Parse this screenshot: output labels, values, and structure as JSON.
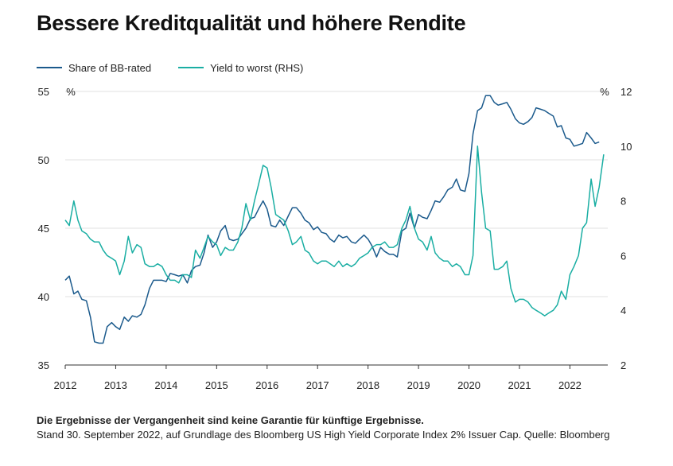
{
  "title": "Bessere Kreditqualität und höhere Rendite",
  "footer": {
    "disclaimer": "Die Ergebnisse der Vergangenheit sind keine Garantie für künftige Ergebnisse.",
    "source": "Stand 30. September 2022, auf Grundlage des Bloomberg US High Yield Corporate Index 2% Issuer Cap. Quelle: Bloomberg"
  },
  "colors": {
    "bb": "#1b5a8c",
    "ytw": "#1aaea3",
    "grid": "#e2e2e2",
    "axis": "#333333"
  },
  "chart_data": {
    "type": "line",
    "title": "Bessere Kreditqualität und höhere Rendite",
    "left_axis_unit": "%",
    "right_axis_unit": "%",
    "ylim_left": [
      35,
      55
    ],
    "ylim_right": [
      2,
      12
    ],
    "xlim": [
      2012.0,
      2022.75
    ],
    "yticks_left": [
      35,
      40,
      45,
      50,
      55
    ],
    "yticks_right": [
      2,
      4,
      6,
      8,
      10,
      12
    ],
    "xticks": [
      2012,
      2013,
      2014,
      2015,
      2016,
      2017,
      2018,
      2019,
      2020,
      2021,
      2022
    ],
    "series": [
      {
        "name": "Share of BB-rated",
        "axis": "left",
        "color": "#1b5a8c",
        "points": [
          [
            2012.0,
            41.2
          ],
          [
            2012.08,
            41.5
          ],
          [
            2012.17,
            40.2
          ],
          [
            2012.25,
            40.4
          ],
          [
            2012.33,
            39.8
          ],
          [
            2012.42,
            39.7
          ],
          [
            2012.5,
            38.5
          ],
          [
            2012.58,
            36.7
          ],
          [
            2012.67,
            36.6
          ],
          [
            2012.75,
            36.6
          ],
          [
            2012.83,
            37.8
          ],
          [
            2012.92,
            38.1
          ],
          [
            2013.0,
            37.8
          ],
          [
            2013.08,
            37.6
          ],
          [
            2013.17,
            38.5
          ],
          [
            2013.25,
            38.2
          ],
          [
            2013.33,
            38.6
          ],
          [
            2013.42,
            38.5
          ],
          [
            2013.5,
            38.7
          ],
          [
            2013.58,
            39.4
          ],
          [
            2013.67,
            40.6
          ],
          [
            2013.75,
            41.2
          ],
          [
            2013.83,
            41.2
          ],
          [
            2013.92,
            41.2
          ],
          [
            2014.0,
            41.1
          ],
          [
            2014.08,
            41.7
          ],
          [
            2014.17,
            41.6
          ],
          [
            2014.25,
            41.5
          ],
          [
            2014.33,
            41.6
          ],
          [
            2014.42,
            41.0
          ],
          [
            2014.5,
            41.9
          ],
          [
            2014.58,
            42.2
          ],
          [
            2014.67,
            42.3
          ],
          [
            2014.75,
            43.2
          ],
          [
            2014.83,
            44.5
          ],
          [
            2014.92,
            43.6
          ],
          [
            2015.0,
            44.0
          ],
          [
            2015.08,
            44.8
          ],
          [
            2015.17,
            45.2
          ],
          [
            2015.25,
            44.2
          ],
          [
            2015.33,
            44.1
          ],
          [
            2015.42,
            44.2
          ],
          [
            2015.5,
            44.6
          ],
          [
            2015.58,
            45.0
          ],
          [
            2015.67,
            45.7
          ],
          [
            2015.75,
            45.8
          ],
          [
            2015.83,
            46.4
          ],
          [
            2015.92,
            47.0
          ],
          [
            2016.0,
            46.4
          ],
          [
            2016.08,
            45.2
          ],
          [
            2016.17,
            45.1
          ],
          [
            2016.25,
            45.6
          ],
          [
            2016.33,
            45.2
          ],
          [
            2016.42,
            45.9
          ],
          [
            2016.5,
            46.5
          ],
          [
            2016.58,
            46.5
          ],
          [
            2016.67,
            46.1
          ],
          [
            2016.75,
            45.6
          ],
          [
            2016.83,
            45.4
          ],
          [
            2016.92,
            44.9
          ],
          [
            2017.0,
            45.1
          ],
          [
            2017.08,
            44.7
          ],
          [
            2017.17,
            44.6
          ],
          [
            2017.25,
            44.2
          ],
          [
            2017.33,
            44.0
          ],
          [
            2017.42,
            44.5
          ],
          [
            2017.5,
            44.3
          ],
          [
            2017.58,
            44.4
          ],
          [
            2017.67,
            44.0
          ],
          [
            2017.75,
            43.9
          ],
          [
            2017.83,
            44.2
          ],
          [
            2017.92,
            44.5
          ],
          [
            2018.0,
            44.2
          ],
          [
            2018.08,
            43.7
          ],
          [
            2018.17,
            42.9
          ],
          [
            2018.25,
            43.6
          ],
          [
            2018.33,
            43.3
          ],
          [
            2018.42,
            43.1
          ],
          [
            2018.5,
            43.1
          ],
          [
            2018.58,
            42.9
          ],
          [
            2018.67,
            44.8
          ],
          [
            2018.75,
            45.0
          ],
          [
            2018.83,
            46.1
          ],
          [
            2018.92,
            45.0
          ],
          [
            2019.0,
            46.0
          ],
          [
            2019.08,
            45.8
          ],
          [
            2019.17,
            45.7
          ],
          [
            2019.25,
            46.3
          ],
          [
            2019.33,
            47.0
          ],
          [
            2019.42,
            46.9
          ],
          [
            2019.5,
            47.3
          ],
          [
            2019.58,
            47.8
          ],
          [
            2019.67,
            48.0
          ],
          [
            2019.75,
            48.6
          ],
          [
            2019.83,
            47.8
          ],
          [
            2019.92,
            47.7
          ],
          [
            2020.0,
            49.0
          ],
          [
            2020.08,
            51.9
          ],
          [
            2020.17,
            53.6
          ],
          [
            2020.25,
            53.8
          ],
          [
            2020.33,
            54.7
          ],
          [
            2020.42,
            54.7
          ],
          [
            2020.5,
            54.2
          ],
          [
            2020.58,
            54.0
          ],
          [
            2020.67,
            54.1
          ],
          [
            2020.75,
            54.2
          ],
          [
            2020.83,
            53.7
          ],
          [
            2020.92,
            53.0
          ],
          [
            2021.0,
            52.7
          ],
          [
            2021.08,
            52.6
          ],
          [
            2021.17,
            52.8
          ],
          [
            2021.25,
            53.1
          ],
          [
            2021.33,
            53.8
          ],
          [
            2021.42,
            53.7
          ],
          [
            2021.5,
            53.6
          ],
          [
            2021.58,
            53.4
          ],
          [
            2021.67,
            53.2
          ],
          [
            2021.75,
            52.4
          ],
          [
            2021.83,
            52.5
          ],
          [
            2021.92,
            51.6
          ],
          [
            2022.0,
            51.5
          ],
          [
            2022.08,
            51.0
          ],
          [
            2022.17,
            51.1
          ],
          [
            2022.25,
            51.2
          ],
          [
            2022.33,
            52.0
          ],
          [
            2022.42,
            51.6
          ],
          [
            2022.5,
            51.2
          ],
          [
            2022.58,
            51.3
          ]
        ]
      },
      {
        "name": "Yield to worst (RHS)",
        "axis": "right",
        "color": "#1aaea3",
        "points": [
          [
            2012.0,
            7.3
          ],
          [
            2012.08,
            7.1
          ],
          [
            2012.17,
            8.0
          ],
          [
            2012.25,
            7.3
          ],
          [
            2012.33,
            6.9
          ],
          [
            2012.42,
            6.8
          ],
          [
            2012.5,
            6.6
          ],
          [
            2012.58,
            6.5
          ],
          [
            2012.67,
            6.5
          ],
          [
            2012.75,
            6.2
          ],
          [
            2012.83,
            6.0
          ],
          [
            2012.92,
            5.9
          ],
          [
            2013.0,
            5.8
          ],
          [
            2013.08,
            5.3
          ],
          [
            2013.17,
            5.8
          ],
          [
            2013.25,
            6.7
          ],
          [
            2013.33,
            6.1
          ],
          [
            2013.42,
            6.4
          ],
          [
            2013.5,
            6.3
          ],
          [
            2013.58,
            5.7
          ],
          [
            2013.67,
            5.6
          ],
          [
            2013.75,
            5.6
          ],
          [
            2013.83,
            5.7
          ],
          [
            2013.92,
            5.6
          ],
          [
            2014.0,
            5.3
          ],
          [
            2014.08,
            5.1
          ],
          [
            2014.17,
            5.1
          ],
          [
            2014.25,
            5.0
          ],
          [
            2014.33,
            5.3
          ],
          [
            2014.42,
            5.3
          ],
          [
            2014.5,
            5.2
          ],
          [
            2014.58,
            6.2
          ],
          [
            2014.67,
            5.9
          ],
          [
            2014.75,
            6.3
          ],
          [
            2014.83,
            6.7
          ],
          [
            2014.92,
            6.5
          ],
          [
            2015.0,
            6.4
          ],
          [
            2015.08,
            6.0
          ],
          [
            2015.17,
            6.3
          ],
          [
            2015.25,
            6.2
          ],
          [
            2015.33,
            6.2
          ],
          [
            2015.42,
            6.5
          ],
          [
            2015.5,
            7.0
          ],
          [
            2015.58,
            7.9
          ],
          [
            2015.67,
            7.3
          ],
          [
            2015.75,
            8.0
          ],
          [
            2015.83,
            8.6
          ],
          [
            2015.92,
            9.3
          ],
          [
            2016.0,
            9.2
          ],
          [
            2016.08,
            8.5
          ],
          [
            2016.17,
            7.5
          ],
          [
            2016.25,
            7.4
          ],
          [
            2016.33,
            7.3
          ],
          [
            2016.42,
            6.9
          ],
          [
            2016.5,
            6.4
          ],
          [
            2016.58,
            6.5
          ],
          [
            2016.67,
            6.7
          ],
          [
            2016.75,
            6.2
          ],
          [
            2016.83,
            6.1
          ],
          [
            2016.92,
            5.8
          ],
          [
            2017.0,
            5.7
          ],
          [
            2017.08,
            5.8
          ],
          [
            2017.17,
            5.8
          ],
          [
            2017.25,
            5.7
          ],
          [
            2017.33,
            5.6
          ],
          [
            2017.42,
            5.8
          ],
          [
            2017.5,
            5.6
          ],
          [
            2017.58,
            5.7
          ],
          [
            2017.67,
            5.6
          ],
          [
            2017.75,
            5.7
          ],
          [
            2017.83,
            5.9
          ],
          [
            2017.92,
            6.0
          ],
          [
            2018.0,
            6.1
          ],
          [
            2018.08,
            6.3
          ],
          [
            2018.17,
            6.4
          ],
          [
            2018.25,
            6.4
          ],
          [
            2018.33,
            6.5
          ],
          [
            2018.42,
            6.3
          ],
          [
            2018.5,
            6.3
          ],
          [
            2018.58,
            6.4
          ],
          [
            2018.67,
            7.0
          ],
          [
            2018.75,
            7.3
          ],
          [
            2018.83,
            7.8
          ],
          [
            2018.92,
            7.0
          ],
          [
            2019.0,
            6.6
          ],
          [
            2019.08,
            6.5
          ],
          [
            2019.17,
            6.2
          ],
          [
            2019.25,
            6.7
          ],
          [
            2019.33,
            6.1
          ],
          [
            2019.42,
            5.9
          ],
          [
            2019.5,
            5.8
          ],
          [
            2019.58,
            5.8
          ],
          [
            2019.67,
            5.6
          ],
          [
            2019.75,
            5.7
          ],
          [
            2019.83,
            5.6
          ],
          [
            2019.92,
            5.3
          ],
          [
            2020.0,
            5.3
          ],
          [
            2020.08,
            6.0
          ],
          [
            2020.17,
            10.0
          ],
          [
            2020.25,
            8.3
          ],
          [
            2020.33,
            7.0
          ],
          [
            2020.42,
            6.9
          ],
          [
            2020.5,
            5.5
          ],
          [
            2020.58,
            5.5
          ],
          [
            2020.67,
            5.6
          ],
          [
            2020.75,
            5.8
          ],
          [
            2020.83,
            4.8
          ],
          [
            2020.92,
            4.3
          ],
          [
            2021.0,
            4.4
          ],
          [
            2021.08,
            4.4
          ],
          [
            2021.17,
            4.3
          ],
          [
            2021.25,
            4.1
          ],
          [
            2021.33,
            4.0
          ],
          [
            2021.42,
            3.9
          ],
          [
            2021.5,
            3.8
          ],
          [
            2021.58,
            3.9
          ],
          [
            2021.67,
            4.0
          ],
          [
            2021.75,
            4.2
          ],
          [
            2021.83,
            4.7
          ],
          [
            2021.92,
            4.4
          ],
          [
            2022.0,
            5.3
          ],
          [
            2022.08,
            5.6
          ],
          [
            2022.17,
            6.0
          ],
          [
            2022.25,
            7.0
          ],
          [
            2022.33,
            7.2
          ],
          [
            2022.42,
            8.8
          ],
          [
            2022.5,
            7.8
          ],
          [
            2022.58,
            8.5
          ],
          [
            2022.67,
            9.7
          ]
        ]
      }
    ]
  }
}
